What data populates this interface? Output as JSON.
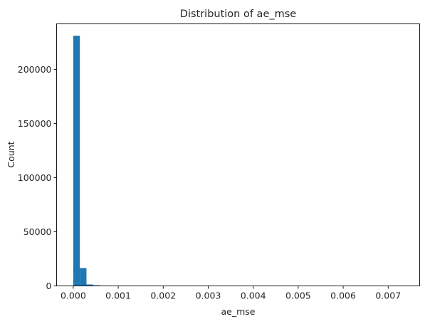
{
  "chart_data": {
    "type": "bar",
    "title": "Distribution of ae_mse",
    "xlabel": "ae_mse",
    "ylabel": "Count",
    "xlim": [
      -0.00037,
      0.0077
    ],
    "ylim": [
      0,
      242000
    ],
    "x_ticks": [
      "0.000",
      "0.001",
      "0.002",
      "0.003",
      "0.004",
      "0.005",
      "0.006",
      "0.007"
    ],
    "x_tick_values": [
      0,
      0.001,
      0.002,
      0.003,
      0.004,
      0.005,
      0.006,
      0.007
    ],
    "y_ticks": [
      "0",
      "50000",
      "100000",
      "150000",
      "200000"
    ],
    "y_tick_values": [
      0,
      50000,
      100000,
      150000,
      200000
    ],
    "bins": {
      "start": 0.0,
      "width": 0.000147,
      "count": 50,
      "values": [
        231000,
        16500,
        1300,
        600,
        300,
        100,
        30,
        10,
        0,
        0,
        0,
        0,
        0,
        0,
        0,
        0,
        0,
        0,
        0,
        0,
        0,
        0,
        0,
        0,
        0,
        0,
        0,
        0,
        0,
        0,
        0,
        0,
        0,
        0,
        0,
        0,
        0,
        0,
        0,
        0,
        0,
        0,
        0,
        0,
        0,
        0,
        0,
        0,
        0,
        1
      ]
    },
    "bar_color": "#1f77b4",
    "grid": false,
    "legend": "none"
  }
}
